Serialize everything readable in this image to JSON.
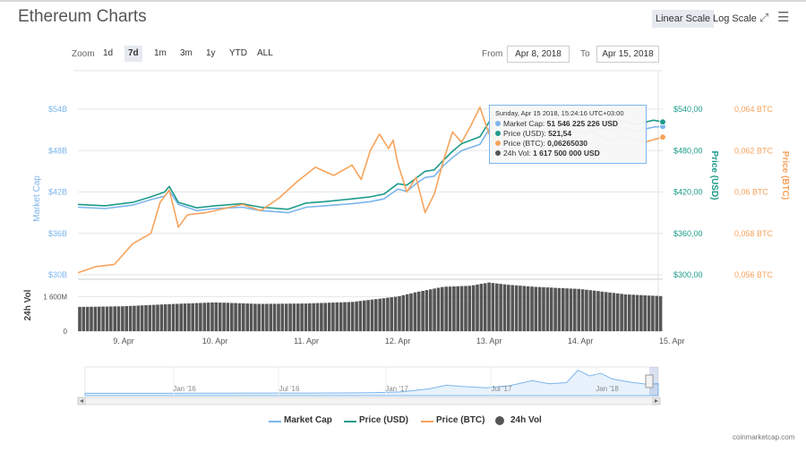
{
  "header": {
    "title": "Ethereum Charts",
    "linear_label": "Linear Scale",
    "log_label": "Log Scale",
    "fullscreen_glyph": "⤢",
    "menu_glyph": "☰"
  },
  "zoom": {
    "label": "Zoom",
    "buttons": [
      "1d",
      "7d",
      "1m",
      "3m",
      "1y",
      "YTD",
      "ALL"
    ],
    "active": "7d"
  },
  "range": {
    "from_label": "From",
    "from": "Apr 8, 2018",
    "to_label": "To",
    "to": "Apr 15, 2018"
  },
  "tooltip": {
    "date": "Sunday, Apr 15 2018, 15:24:16 UTC+03:00",
    "rows": [
      {
        "label": "Market Cap:",
        "value": "51 546 225 226 USD",
        "color": "#7cb5ec"
      },
      {
        "label": "Price (USD):",
        "value": "521,54",
        "color": "#1d9b8a"
      },
      {
        "label": "Price (BTC):",
        "value": "0,06265030",
        "color": "#f7a35c"
      },
      {
        "label": "24h Vol:",
        "value": "1 617 500 000 USD",
        "color": "#555555"
      }
    ]
  },
  "legend": {
    "items": [
      {
        "label": "Market Cap",
        "color": "#7cb5ec"
      },
      {
        "label": "Price (USD)",
        "color": "#1d9b8a"
      },
      {
        "label": "Price (BTC)",
        "color": "#f7a35c"
      },
      {
        "label": "24h Vol",
        "color": "#555555"
      }
    ]
  },
  "credits": "coinmarketcap.com",
  "chart_data": {
    "type": "line",
    "x_range": [
      "2018-04-08T12:00",
      "2018-04-15T15:24"
    ],
    "x_ticks": [
      "9. Apr",
      "10. Apr",
      "11. Apr",
      "12. Apr",
      "13. Apr",
      "14. Apr",
      "15. Apr"
    ],
    "axes": {
      "market_cap": {
        "title": "Market Cap",
        "ticks": [
          "$30B",
          "$36B",
          "$42B",
          "$48B",
          "$54B"
        ],
        "range": [
          30,
          54
        ],
        "unit": "B USD"
      },
      "price_usd": {
        "title": "Price (USD)",
        "ticks": [
          "$300,00",
          "$360,00",
          "$420,00",
          "$480,00",
          "$540,00"
        ],
        "range": [
          300,
          540
        ]
      },
      "price_btc": {
        "title": "Price (BTC)",
        "ticks": [
          "0,056 BTC",
          "0,058 BTC",
          "0,06 BTC",
          "0,062 BTC",
          "0,064 BTC"
        ],
        "range": [
          0.056,
          0.064
        ]
      },
      "volume": {
        "title": "24h Vol",
        "ticks": [
          "0",
          "1 600M"
        ],
        "range": [
          0,
          2400
        ],
        "unit": "M USD"
      }
    },
    "series": [
      {
        "name": "Market Cap",
        "color": "#7cb5ec",
        "axis": "market_cap",
        "unit": "B USD",
        "points": [
          [
            0,
            39.8
          ],
          [
            0.3,
            39.6
          ],
          [
            0.6,
            40.1
          ],
          [
            0.8,
            40.9
          ],
          [
            0.95,
            41.4
          ],
          [
            1.0,
            42.2
          ],
          [
            1.1,
            40.2
          ],
          [
            1.3,
            39.3
          ],
          [
            1.5,
            39.6
          ],
          [
            1.8,
            39.8
          ],
          [
            2.0,
            39.3
          ],
          [
            2.3,
            39.0
          ],
          [
            2.5,
            39.8
          ],
          [
            2.7,
            40.0
          ],
          [
            3.0,
            40.3
          ],
          [
            3.2,
            40.6
          ],
          [
            3.35,
            41.0
          ],
          [
            3.5,
            42.4
          ],
          [
            3.6,
            42.1
          ],
          [
            3.7,
            43.2
          ],
          [
            3.8,
            44.1
          ],
          [
            3.9,
            44.3
          ],
          [
            4.0,
            45.8
          ],
          [
            4.1,
            47.0
          ],
          [
            4.2,
            48.0
          ],
          [
            4.4,
            48.9
          ],
          [
            4.55,
            52.2
          ],
          [
            4.65,
            51.6
          ],
          [
            4.8,
            52.0
          ],
          [
            5.0,
            50.6
          ],
          [
            5.2,
            50.8
          ],
          [
            5.5,
            50.6
          ],
          [
            5.7,
            51.0
          ],
          [
            5.9,
            51.4
          ],
          [
            6.1,
            50.8
          ],
          [
            6.3,
            51.4
          ],
          [
            6.4,
            51.5
          ]
        ]
      },
      {
        "name": "Price (USD)",
        "color": "#1d9b8a",
        "axis": "price_usd",
        "points": [
          [
            0,
            402
          ],
          [
            0.3,
            400
          ],
          [
            0.6,
            405
          ],
          [
            0.8,
            413
          ],
          [
            0.95,
            420
          ],
          [
            1.0,
            428
          ],
          [
            1.1,
            405
          ],
          [
            1.3,
            397
          ],
          [
            1.5,
            400
          ],
          [
            1.8,
            403
          ],
          [
            2.0,
            398
          ],
          [
            2.3,
            395
          ],
          [
            2.5,
            404
          ],
          [
            2.7,
            406
          ],
          [
            3.0,
            410
          ],
          [
            3.2,
            413
          ],
          [
            3.35,
            417
          ],
          [
            3.5,
            432
          ],
          [
            3.6,
            430
          ],
          [
            3.7,
            440
          ],
          [
            3.8,
            450
          ],
          [
            3.9,
            452
          ],
          [
            4.0,
            466
          ],
          [
            4.1,
            479
          ],
          [
            4.2,
            490
          ],
          [
            4.4,
            500
          ],
          [
            4.55,
            532
          ],
          [
            4.65,
            527
          ],
          [
            4.8,
            530
          ],
          [
            5.0,
            516
          ],
          [
            5.2,
            518
          ],
          [
            5.5,
            516
          ],
          [
            5.7,
            520
          ],
          [
            5.9,
            525
          ],
          [
            6.1,
            518
          ],
          [
            6.3,
            524
          ],
          [
            6.4,
            521.54
          ]
        ]
      },
      {
        "name": "Price (BTC)",
        "color": "#f7a35c",
        "axis": "price_btc",
        "points": [
          [
            0,
            0.0561
          ],
          [
            0.2,
            0.0564
          ],
          [
            0.4,
            0.0565
          ],
          [
            0.6,
            0.0575
          ],
          [
            0.8,
            0.058
          ],
          [
            0.9,
            0.0595
          ],
          [
            1.0,
            0.0601
          ],
          [
            1.1,
            0.0583
          ],
          [
            1.2,
            0.0589
          ],
          [
            1.4,
            0.059
          ],
          [
            1.6,
            0.0592
          ],
          [
            1.8,
            0.0594
          ],
          [
            2.0,
            0.0591
          ],
          [
            2.2,
            0.0597
          ],
          [
            2.4,
            0.0605
          ],
          [
            2.6,
            0.0612
          ],
          [
            2.8,
            0.0608
          ],
          [
            3.0,
            0.0613
          ],
          [
            3.1,
            0.0606
          ],
          [
            3.2,
            0.062
          ],
          [
            3.3,
            0.0628
          ],
          [
            3.4,
            0.0621
          ],
          [
            3.45,
            0.0625
          ],
          [
            3.5,
            0.0614
          ],
          [
            3.6,
            0.06
          ],
          [
            3.7,
            0.0607
          ],
          [
            3.8,
            0.059
          ],
          [
            3.9,
            0.0599
          ],
          [
            4.0,
            0.0615
          ],
          [
            4.1,
            0.0629
          ],
          [
            4.2,
            0.0624
          ],
          [
            4.3,
            0.0632
          ],
          [
            4.4,
            0.0641
          ],
          [
            4.5,
            0.0628
          ],
          [
            4.6,
            0.0625
          ],
          [
            4.8,
            0.063
          ],
          [
            5.0,
            0.0626
          ],
          [
            5.2,
            0.0628
          ],
          [
            5.4,
            0.0624
          ],
          [
            5.6,
            0.063
          ],
          [
            5.8,
            0.0625
          ],
          [
            6.0,
            0.0627
          ],
          [
            6.2,
            0.0624
          ],
          [
            6.4,
            0.0626503
          ]
        ]
      },
      {
        "name": "24h Vol",
        "color": "#555555",
        "axis": "volume",
        "unit": "M USD",
        "points": [
          [
            0,
            1120
          ],
          [
            0.5,
            1150
          ],
          [
            1.0,
            1250
          ],
          [
            1.5,
            1330
          ],
          [
            2.0,
            1260
          ],
          [
            2.5,
            1280
          ],
          [
            3.0,
            1350
          ],
          [
            3.5,
            1600
          ],
          [
            3.7,
            1800
          ],
          [
            4.0,
            2050
          ],
          [
            4.3,
            2100
          ],
          [
            4.5,
            2250
          ],
          [
            4.7,
            2150
          ],
          [
            5.0,
            2050
          ],
          [
            5.5,
            1950
          ],
          [
            6.0,
            1700
          ],
          [
            6.4,
            1617.5
          ]
        ]
      }
    ],
    "navigator": {
      "ticks": [
        "Jan '16",
        "Jul '16",
        "Jan '17",
        "Jul '17",
        "Jan '18"
      ]
    },
    "legend_position": "bottom"
  }
}
